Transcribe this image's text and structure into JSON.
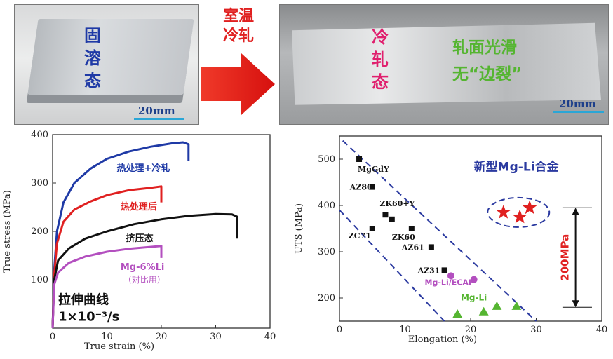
{
  "photo_left": {
    "label": "固溶态",
    "scale": "20mm"
  },
  "process_label_line1": "室温",
  "process_label_line2": "冷轧",
  "photo_right": {
    "label": "冷轧态",
    "note_line1": "轧面光滑",
    "note_line2": "无“边裂”",
    "scale": "20mm"
  },
  "colors": {
    "blue": "#1f3aa6",
    "red": "#e02020",
    "black": "#111111",
    "magenta": "#b34fbf",
    "green": "#55b531",
    "pink": "#e0206e"
  },
  "chart_data": [
    {
      "type": "line",
      "xlabel": "True strain (%)",
      "ylabel": "True stress (MPa)",
      "xlim": [
        0,
        40
      ],
      "ylim": [
        0,
        400
      ],
      "xticks": [
        0,
        10,
        20,
        30,
        40
      ],
      "yticks": [
        100,
        200,
        300,
        400
      ],
      "annotation_line1": "拉伸曲线",
      "annotation_line2": "1×10⁻³/s",
      "series": [
        {
          "name": "热处理+冷轧",
          "color": "#1f3aa6",
          "points": [
            [
              0,
              0
            ],
            [
              0.3,
              120
            ],
            [
              0.8,
              200
            ],
            [
              2,
              260
            ],
            [
              4,
              300
            ],
            [
              7,
              330
            ],
            [
              10,
              350
            ],
            [
              14,
              365
            ],
            [
              18,
              375
            ],
            [
              22,
              382
            ],
            [
              24,
              384
            ],
            [
              25,
              380
            ],
            [
              25,
              345
            ]
          ]
        },
        {
          "name": "热处理后",
          "color": "#e02020",
          "points": [
            [
              0,
              0
            ],
            [
              0.3,
              110
            ],
            [
              0.8,
              175
            ],
            [
              2,
              220
            ],
            [
              4,
              245
            ],
            [
              7,
              262
            ],
            [
              10,
              275
            ],
            [
              14,
              285
            ],
            [
              18,
              290
            ],
            [
              20,
              293
            ],
            [
              20,
              260
            ]
          ]
        },
        {
          "name": "挤压态",
          "color": "#111111",
          "points": [
            [
              0,
              0
            ],
            [
              0.3,
              100
            ],
            [
              1,
              140
            ],
            [
              3,
              165
            ],
            [
              6,
              185
            ],
            [
              10,
              200
            ],
            [
              15,
              215
            ],
            [
              20,
              225
            ],
            [
              25,
              232
            ],
            [
              30,
              236
            ],
            [
              33,
              235
            ],
            [
              34,
              230
            ],
            [
              34,
              185
            ]
          ]
        },
        {
          "name": "Mg-6%Li",
          "name2": "（对比用）",
          "color": "#b34fbf",
          "points": [
            [
              0,
              0
            ],
            [
              0.3,
              90
            ],
            [
              1,
              115
            ],
            [
              3,
              135
            ],
            [
              6,
              148
            ],
            [
              10,
              158
            ],
            [
              14,
              164
            ],
            [
              18,
              168
            ],
            [
              20,
              170
            ],
            [
              20,
              145
            ]
          ]
        }
      ]
    },
    {
      "type": "scatter",
      "xlabel": "Elongation (%)",
      "ylabel": "UTS (MPa)",
      "xlim": [
        0,
        40
      ],
      "ylim": [
        150,
        550
      ],
      "xticks": [
        0,
        10,
        20,
        30,
        40
      ],
      "yticks": [
        200,
        300,
        400,
        500
      ],
      "title": "新型Mg-Li合金",
      "range_label": "200MPa",
      "range": [
        180,
        395
      ],
      "squares": [
        {
          "label": "MgGdY",
          "x": 3,
          "y": 500
        },
        {
          "label": "AZ80",
          "x": 5,
          "y": 440
        },
        {
          "label": "ZK60+Y",
          "x": 7,
          "y": 380
        },
        {
          "label": "ZC71",
          "x": 5,
          "y": 350
        },
        {
          "label": "",
          "x": 8,
          "y": 370
        },
        {
          "label": "ZK60",
          "x": 11,
          "y": 350
        },
        {
          "label": "AZ61",
          "x": 14,
          "y": 310
        },
        {
          "label": "AZ31",
          "x": 16,
          "y": 260
        }
      ],
      "circles": {
        "label": "Mg-Li/ECAP",
        "points": [
          [
            17,
            248
          ],
          [
            20.5,
            240
          ]
        ]
      },
      "triangles": {
        "label": "Mg-Li",
        "points": [
          [
            18,
            165
          ],
          [
            22,
            170
          ],
          [
            24,
            182
          ],
          [
            27,
            182
          ]
        ]
      },
      "stars": [
        [
          25,
          385
        ],
        [
          27.5,
          375
        ],
        [
          29,
          395
        ]
      ]
    }
  ]
}
